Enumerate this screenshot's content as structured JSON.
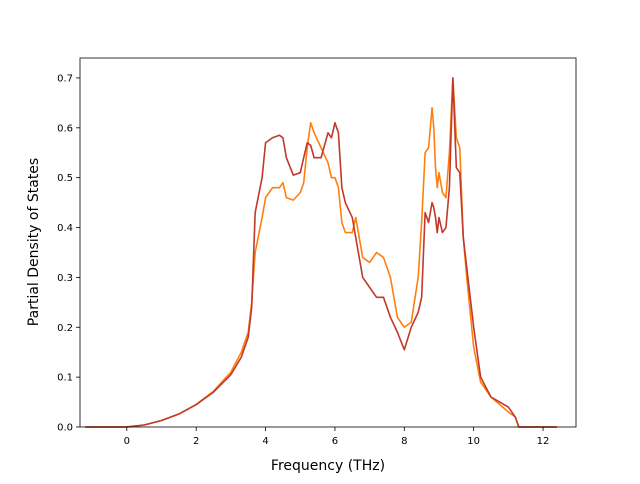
{
  "chart_data": {
    "type": "line",
    "title": "",
    "xlabel": "Frequency (THz)",
    "ylabel": "Partial Density of States",
    "xlim": [
      -1.35,
      12.95
    ],
    "ylim": [
      0.0,
      0.74
    ],
    "xticks": [
      0,
      2,
      4,
      6,
      8,
      10,
      12
    ],
    "yticks": [
      0.0,
      0.1,
      0.2,
      0.3,
      0.4,
      0.5,
      0.6,
      0.7
    ],
    "xtick_labels": [
      "0",
      "2",
      "4",
      "6",
      "8",
      "10",
      "12"
    ],
    "ytick_labels": [
      "0.0",
      "0.1",
      "0.2",
      "0.3",
      "0.4",
      "0.5",
      "0.6",
      "0.7"
    ],
    "grid": false,
    "legend": "none",
    "series": [
      {
        "color": "#ff7f0e",
        "x": [
          -1.2,
          0,
          0.5,
          1.0,
          1.5,
          2.0,
          2.5,
          3.0,
          3.3,
          3.5,
          3.6,
          3.7,
          3.9,
          4.0,
          4.2,
          4.4,
          4.5,
          4.6,
          4.8,
          5.0,
          5.1,
          5.2,
          5.3,
          5.4,
          5.6,
          5.8,
          5.9,
          6.0,
          6.1,
          6.2,
          6.3,
          6.5,
          6.6,
          6.8,
          7.0,
          7.2,
          7.4,
          7.6,
          7.8,
          8.0,
          8.2,
          8.4,
          8.5,
          8.6,
          8.7,
          8.8,
          8.85,
          8.9,
          8.95,
          9.0,
          9.1,
          9.2,
          9.3,
          9.4,
          9.5,
          9.6,
          9.7,
          9.8,
          10.0,
          10.2,
          10.5,
          11.0,
          11.2,
          11.3,
          12.4
        ],
        "y": [
          0.0,
          0.0,
          0.004,
          0.013,
          0.026,
          0.045,
          0.072,
          0.11,
          0.15,
          0.19,
          0.25,
          0.35,
          0.42,
          0.46,
          0.48,
          0.48,
          0.49,
          0.46,
          0.455,
          0.47,
          0.49,
          0.56,
          0.61,
          0.59,
          0.56,
          0.53,
          0.5,
          0.5,
          0.48,
          0.41,
          0.39,
          0.39,
          0.42,
          0.34,
          0.33,
          0.35,
          0.34,
          0.3,
          0.22,
          0.2,
          0.21,
          0.3,
          0.41,
          0.55,
          0.56,
          0.64,
          0.6,
          0.52,
          0.48,
          0.51,
          0.47,
          0.46,
          0.55,
          0.7,
          0.58,
          0.56,
          0.38,
          0.3,
          0.16,
          0.09,
          0.06,
          0.03,
          0.02,
          0.0,
          0.0
        ]
      },
      {
        "color": "#c0392b",
        "x": [
          -1.2,
          0,
          0.5,
          1.0,
          1.5,
          2.0,
          2.5,
          3.0,
          3.3,
          3.5,
          3.6,
          3.7,
          3.9,
          4.0,
          4.2,
          4.4,
          4.5,
          4.6,
          4.8,
          5.0,
          5.1,
          5.2,
          5.3,
          5.4,
          5.6,
          5.8,
          5.9,
          6.0,
          6.1,
          6.2,
          6.3,
          6.5,
          6.6,
          6.8,
          7.0,
          7.2,
          7.4,
          7.6,
          7.8,
          8.0,
          8.2,
          8.4,
          8.5,
          8.6,
          8.7,
          8.8,
          8.85,
          8.9,
          8.95,
          9.0,
          9.1,
          9.2,
          9.3,
          9.4,
          9.5,
          9.6,
          9.7,
          9.8,
          10.0,
          10.2,
          10.5,
          11.0,
          11.2,
          11.3,
          12.4
        ],
        "y": [
          0.0,
          0.0,
          0.004,
          0.013,
          0.026,
          0.045,
          0.07,
          0.105,
          0.14,
          0.18,
          0.24,
          0.43,
          0.5,
          0.57,
          0.58,
          0.585,
          0.58,
          0.54,
          0.505,
          0.51,
          0.54,
          0.57,
          0.565,
          0.54,
          0.54,
          0.59,
          0.58,
          0.61,
          0.59,
          0.48,
          0.45,
          0.42,
          0.38,
          0.3,
          0.28,
          0.26,
          0.26,
          0.22,
          0.19,
          0.155,
          0.2,
          0.23,
          0.26,
          0.43,
          0.41,
          0.45,
          0.44,
          0.42,
          0.39,
          0.42,
          0.39,
          0.4,
          0.48,
          0.7,
          0.52,
          0.51,
          0.38,
          0.32,
          0.2,
          0.1,
          0.06,
          0.04,
          0.02,
          0.0,
          0.0
        ]
      }
    ]
  }
}
